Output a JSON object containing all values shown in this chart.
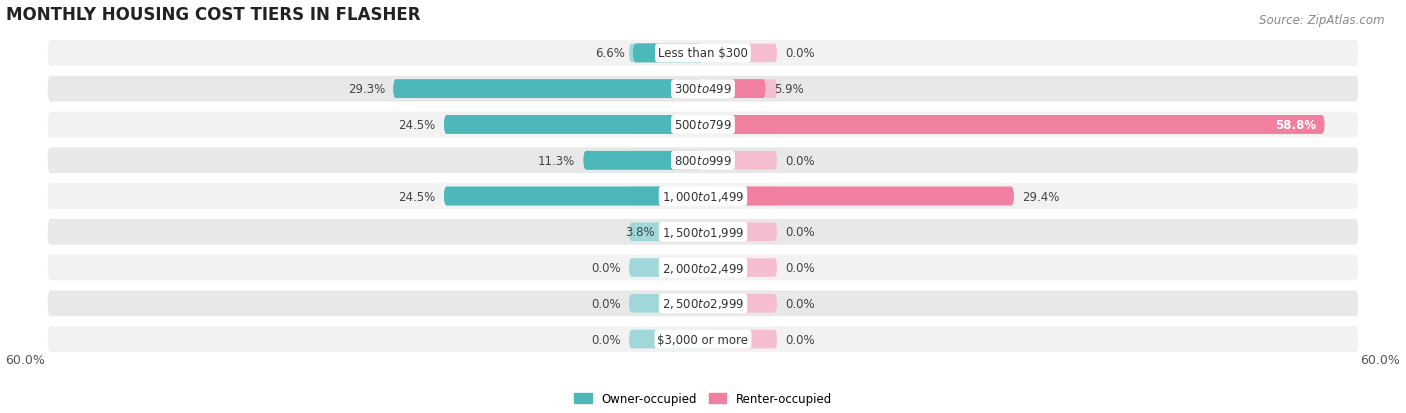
{
  "title": "MONTHLY HOUSING COST TIERS IN FLASHER",
  "source": "Source: ZipAtlas.com",
  "categories": [
    "Less than $300",
    "$300 to $499",
    "$500 to $799",
    "$800 to $999",
    "$1,000 to $1,499",
    "$1,500 to $1,999",
    "$2,000 to $2,499",
    "$2,500 to $2,999",
    "$3,000 or more"
  ],
  "owner_values": [
    6.6,
    29.3,
    24.5,
    11.3,
    24.5,
    3.8,
    0.0,
    0.0,
    0.0
  ],
  "renter_values": [
    0.0,
    5.9,
    58.8,
    0.0,
    29.4,
    0.0,
    0.0,
    0.0,
    0.0
  ],
  "owner_color": "#4db8ba",
  "renter_color": "#f07fa0",
  "owner_stub_color": "#a0d8d9",
  "renter_stub_color": "#f5bece",
  "row_bg_colors": [
    "#f2f2f2",
    "#e8e8e8"
  ],
  "max_value": 60.0,
  "stub_size": 7.0,
  "owner_label": "Owner-occupied",
  "renter_label": "Renter-occupied",
  "title_fontsize": 12,
  "source_fontsize": 8.5,
  "label_fontsize": 8.5,
  "tick_fontsize": 9,
  "category_fontsize": 8.5
}
